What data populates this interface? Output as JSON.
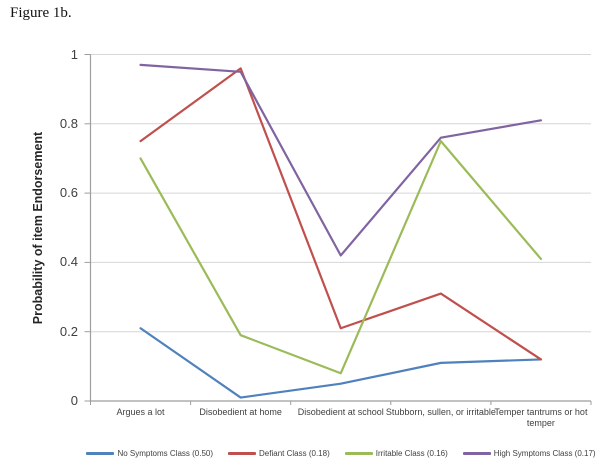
{
  "figure": {
    "title": "Figure 1b."
  },
  "chart_data": {
    "type": "line",
    "title": "",
    "xlabel": "",
    "ylabel": "Probability of item Endorsement",
    "ylim": [
      0,
      1
    ],
    "grid": "horizontal",
    "legend_position": "bottom",
    "categories": [
      "Argues a lot",
      "Disobedient at home",
      "Disobedient at school",
      "Stubborn, sullen, or irritable",
      "Temper tantrums or hot temper"
    ],
    "yticks": [
      {
        "v": 1,
        "label": "1"
      },
      {
        "v": 0.8,
        "label": "0.8"
      },
      {
        "v": 0.6,
        "label": "0.6"
      },
      {
        "v": 0.4,
        "label": "0.4"
      },
      {
        "v": 0.2,
        "label": "0.2"
      },
      {
        "v": 0,
        "label": "0"
      }
    ],
    "series": [
      {
        "name": "No Symptoms Class",
        "legend": "No Symptoms Class (0.50)",
        "color": "#4F81BD",
        "values": [
          0.21,
          0.01,
          0.05,
          0.11,
          0.12
        ]
      },
      {
        "name": "Defiant Class",
        "legend": "Defiant Class (0.18)",
        "color": "#C0504D",
        "values": [
          0.75,
          0.96,
          0.21,
          0.31,
          0.12
        ]
      },
      {
        "name": "Irritable Class",
        "legend": "Irritable Class (0.16)",
        "color": "#9BBB59",
        "values": [
          0.7,
          0.19,
          0.08,
          0.75,
          0.41
        ]
      },
      {
        "name": "High Symptoms Class",
        "legend": "High Symptoms Class (0.17)",
        "color": "#8064A2",
        "values": [
          0.97,
          0.95,
          0.42,
          0.76,
          0.81
        ]
      }
    ],
    "colors": {
      "gridline": "#D6D6D6",
      "axis": "#9E9E9E",
      "text": "#3F3F3F"
    }
  }
}
